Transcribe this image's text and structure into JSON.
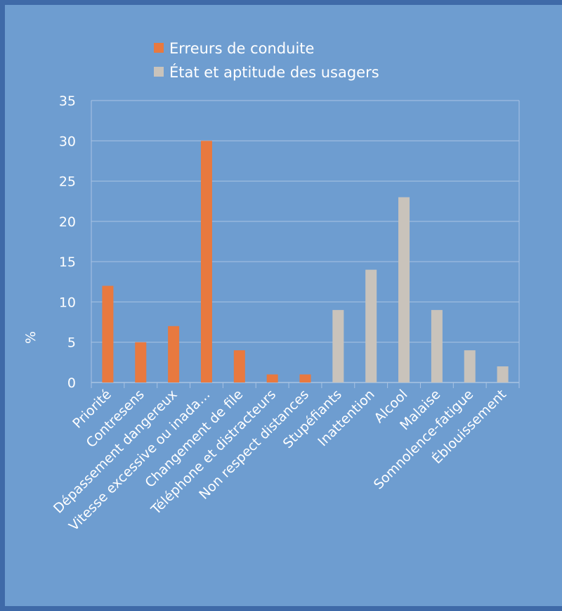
{
  "chart_data": {
    "type": "bar",
    "title": "",
    "xlabel": "",
    "ylabel": "%",
    "ylim": [
      0,
      35
    ],
    "yticks": [
      0,
      5,
      10,
      15,
      20,
      25,
      30,
      35
    ],
    "grid": true,
    "legend_position": "top-center",
    "categories": [
      "Priorité",
      "Contresens",
      "Dépassement dangereux",
      "Vitesse excessive ou inada…",
      "Changement de file",
      "Téléphone et distracteurs",
      "Non respect distances",
      "Stupéfiants",
      "Inattention",
      "Alcool",
      "Malaise",
      "Somnolence-fatigue",
      "Éblouissement"
    ],
    "series": [
      {
        "name": "Erreurs de conduite",
        "color": "#e8793f",
        "values": [
          12,
          5,
          7,
          30,
          4,
          1,
          1,
          null,
          null,
          null,
          null,
          null,
          null
        ]
      },
      {
        "name": "État et aptitude des usagers",
        "color": "#c9c3bb",
        "values": [
          null,
          null,
          null,
          null,
          null,
          null,
          null,
          9,
          14,
          23,
          9,
          4,
          2
        ]
      }
    ]
  },
  "colors": {
    "background": "#6e9dd0",
    "frame": "#3f6aa8",
    "gridline": "#a9c3e3",
    "text": "#ffffff"
  }
}
